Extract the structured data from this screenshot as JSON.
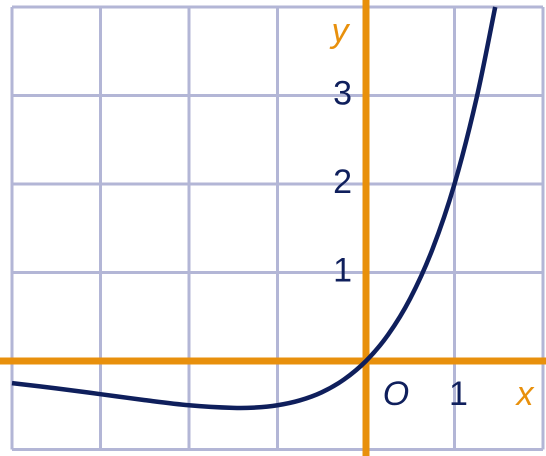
{
  "chart_data": {
    "type": "line",
    "axis_labels": {
      "x": "x",
      "y": "y"
    },
    "origin_label": "O",
    "xlim": [
      -4,
      2
    ],
    "ylim": [
      -1,
      4
    ],
    "xgrid": [
      -4,
      -3,
      -2,
      -1,
      0,
      1,
      2
    ],
    "ygrid": [
      -1,
      0,
      1,
      2,
      3,
      4
    ],
    "xticks": [
      1
    ],
    "yticks": [
      1,
      2,
      3
    ],
    "grid_color": "#b3b6d6",
    "axis_color": "#e8900c",
    "series": [
      {
        "color": "#0f1f5c",
        "x": [
          -4,
          -3.5,
          -3,
          -2.5,
          -2,
          -1.5,
          -1.25,
          -1,
          -0.75,
          -0.5,
          -0.25,
          0,
          0.25,
          0.5,
          0.75,
          1,
          1.25,
          1.46
        ],
        "values": [
          -0.25,
          -0.309,
          -0.375,
          -0.442,
          -0.5,
          -0.53,
          -0.526,
          -0.5,
          -0.446,
          -0.354,
          -0.21,
          0,
          0.297,
          0.707,
          1.261,
          2,
          2.973,
          4.0
        ]
      }
    ]
  }
}
